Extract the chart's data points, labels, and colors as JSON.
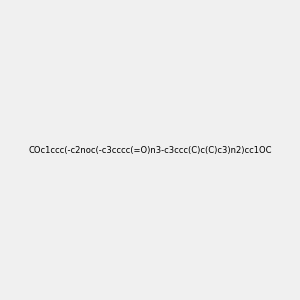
{
  "smiles": "COc1ccc(-c2noc(-c3cccc(=O)n3-c3ccc(C)c(C)c3)n2)cc1OC",
  "title": "",
  "bg_color": "#f0f0f0",
  "figsize": [
    3.0,
    3.0
  ],
  "dpi": 100
}
